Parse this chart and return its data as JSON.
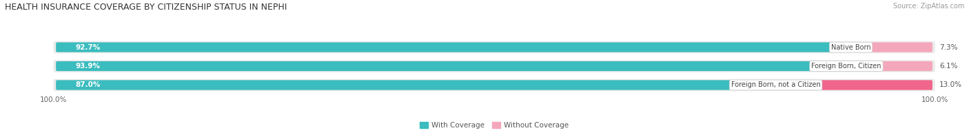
{
  "title": "HEALTH INSURANCE COVERAGE BY CITIZENSHIP STATUS IN NEPHI",
  "source": "Source: ZipAtlas.com",
  "categories": [
    "Native Born",
    "Foreign Born, Citizen",
    "Foreign Born, not a Citizen"
  ],
  "with_coverage": [
    92.7,
    93.9,
    87.0
  ],
  "without_coverage": [
    7.3,
    6.1,
    13.0
  ],
  "with_coverage_color": "#3BBCBE",
  "without_coverage_color_row0": "#F4A7BB",
  "without_coverage_color_row1": "#F4A7BB",
  "without_coverage_color_row2": "#F0658A",
  "row_bg_color": "#EBEBEB",
  "title_fontsize": 9,
  "source_fontsize": 7,
  "tick_fontsize": 7.5,
  "legend_fontsize": 7.5,
  "bar_label_fontsize": 7.5,
  "category_fontsize": 7
}
